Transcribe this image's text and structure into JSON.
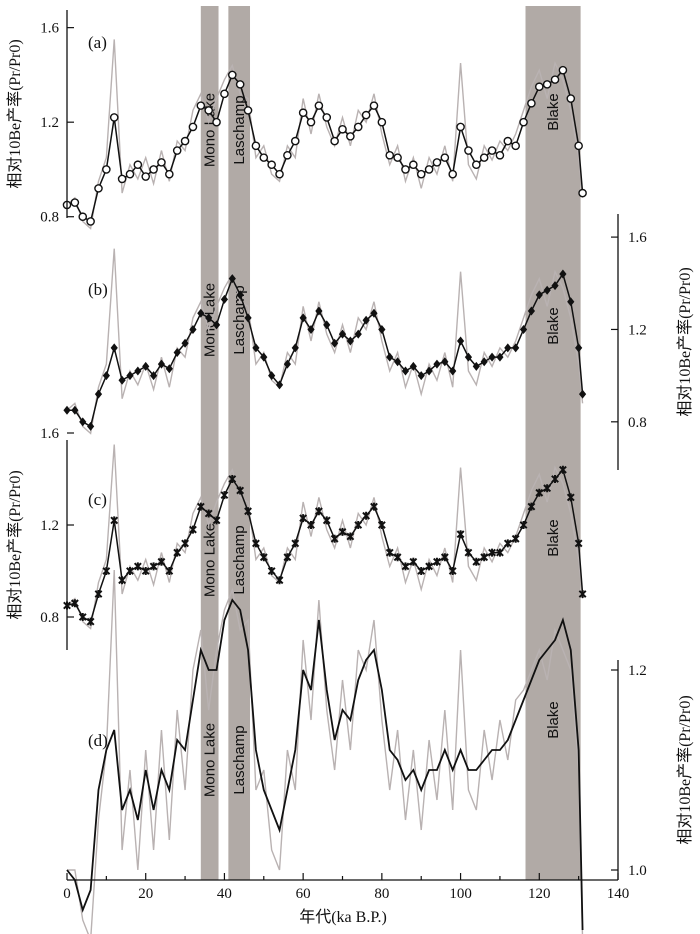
{
  "chart_data": {
    "type": "line",
    "xlabel": "年代(ka B.P.)",
    "xlim": [
      0,
      140
    ],
    "x_ticks": [
      "0",
      "20",
      "40",
      "60",
      "80",
      "100",
      "120",
      "140"
    ],
    "events": [
      {
        "label": "Mono Lake",
        "x_start": 34,
        "x_end": 38.5,
        "color": "#b1aaa6"
      },
      {
        "label": "Laschamp",
        "x_start": 41,
        "x_end": 46.5,
        "color": "#b1aaa6"
      },
      {
        "label": "Blake",
        "x_start": 116.5,
        "x_end": 130.5,
        "color": "#b1aaa6"
      }
    ],
    "colors": {
      "raw": "#b9b2b2",
      "smoothed": "#111111"
    },
    "panels": [
      {
        "label": "(a)",
        "marker": "circle",
        "ylabel": "相对10Be产率(Pr/Pr0)",
        "yaxis_side": "left",
        "ylim": [
          0.6,
          1.7
        ],
        "y_ticks": [
          "0.8",
          "1.2",
          "1.6"
        ],
        "x": [
          0,
          2,
          4,
          6,
          8,
          10,
          12,
          14,
          16,
          18,
          20,
          22,
          24,
          26,
          28,
          30,
          32,
          34,
          36,
          38,
          40,
          42,
          44,
          46,
          48,
          50,
          52,
          54,
          56,
          58,
          60,
          62,
          64,
          66,
          68,
          70,
          72,
          74,
          76,
          78,
          80,
          82,
          84,
          86,
          88,
          90,
          92,
          94,
          96,
          98,
          100,
          102,
          104,
          106,
          108,
          110,
          112,
          114,
          116,
          118,
          120,
          122,
          124,
          126,
          128,
          130,
          131
        ],
        "y": [
          0.85,
          0.86,
          0.8,
          0.78,
          0.92,
          1.0,
          1.22,
          0.96,
          0.98,
          1.02,
          0.97,
          1.0,
          1.03,
          0.98,
          1.08,
          1.12,
          1.18,
          1.27,
          1.25,
          1.2,
          1.32,
          1.4,
          1.36,
          1.25,
          1.1,
          1.05,
          1.02,
          0.98,
          1.06,
          1.12,
          1.24,
          1.2,
          1.27,
          1.22,
          1.12,
          1.17,
          1.14,
          1.18,
          1.23,
          1.27,
          1.2,
          1.06,
          1.05,
          1.0,
          1.02,
          0.98,
          1.0,
          1.03,
          1.05,
          0.98,
          1.18,
          1.08,
          1.02,
          1.05,
          1.08,
          1.06,
          1.12,
          1.1,
          1.2,
          1.28,
          1.35,
          1.36,
          1.38,
          1.42,
          1.3,
          1.1,
          0.9
        ],
        "y_raw": [
          0.85,
          0.88,
          0.78,
          0.75,
          0.95,
          1.05,
          1.55,
          0.9,
          1.02,
          0.96,
          1.05,
          0.94,
          1.08,
          0.95,
          1.12,
          1.08,
          1.25,
          1.32,
          1.2,
          1.3,
          1.38,
          1.44,
          1.32,
          1.3,
          1.05,
          1.1,
          0.98,
          0.95,
          1.1,
          1.05,
          1.3,
          1.15,
          1.32,
          1.18,
          1.1,
          1.22,
          1.1,
          1.25,
          1.2,
          1.32,
          1.15,
          1.02,
          1.1,
          0.95,
          1.05,
          0.92,
          1.05,
          0.98,
          1.1,
          0.95,
          1.45,
          1.02,
          0.96,
          1.1,
          1.04,
          1.12,
          1.08,
          1.15,
          1.25,
          1.35,
          1.42,
          1.3,
          1.45,
          1.38,
          1.25,
          1.05,
          0.88
        ]
      },
      {
        "label": "(b)",
        "marker": "diamond",
        "ylabel": "相对10Be产率(Pr/Pr0)",
        "yaxis_side": "right",
        "ylim": [
          0.6,
          1.7
        ],
        "y_ticks": [
          "0.8",
          "1.2",
          "1.6"
        ],
        "x": [
          0,
          2,
          4,
          6,
          8,
          10,
          12,
          14,
          16,
          18,
          20,
          22,
          24,
          26,
          28,
          30,
          32,
          34,
          36,
          38,
          40,
          42,
          44,
          46,
          48,
          50,
          52,
          54,
          56,
          58,
          60,
          62,
          64,
          66,
          68,
          70,
          72,
          74,
          76,
          78,
          80,
          82,
          84,
          86,
          88,
          90,
          92,
          94,
          96,
          98,
          100,
          102,
          104,
          106,
          108,
          110,
          112,
          114,
          116,
          118,
          120,
          122,
          124,
          126,
          128,
          130,
          131
        ],
        "y": [
          0.85,
          0.85,
          0.8,
          0.78,
          0.92,
          1.0,
          1.12,
          0.98,
          1.0,
          1.02,
          1.04,
          1.0,
          1.05,
          1.03,
          1.1,
          1.14,
          1.2,
          1.27,
          1.25,
          1.22,
          1.33,
          1.42,
          1.35,
          1.25,
          1.12,
          1.08,
          1.0,
          0.96,
          1.05,
          1.12,
          1.25,
          1.2,
          1.28,
          1.22,
          1.14,
          1.18,
          1.15,
          1.18,
          1.24,
          1.27,
          1.2,
          1.08,
          1.06,
          1.02,
          1.04,
          1.0,
          1.02,
          1.05,
          1.06,
          1.02,
          1.15,
          1.08,
          1.04,
          1.06,
          1.08,
          1.08,
          1.12,
          1.12,
          1.2,
          1.28,
          1.35,
          1.37,
          1.39,
          1.44,
          1.32,
          1.12,
          0.92
        ],
        "y_raw": [
          0.85,
          0.88,
          0.78,
          0.75,
          0.95,
          1.05,
          1.55,
          0.9,
          1.02,
          0.96,
          1.05,
          0.94,
          1.08,
          0.95,
          1.12,
          1.08,
          1.25,
          1.32,
          1.2,
          1.3,
          1.38,
          1.44,
          1.32,
          1.3,
          1.05,
          1.1,
          0.98,
          0.95,
          1.1,
          1.05,
          1.3,
          1.15,
          1.32,
          1.18,
          1.1,
          1.22,
          1.1,
          1.25,
          1.2,
          1.32,
          1.15,
          1.02,
          1.1,
          0.95,
          1.05,
          0.92,
          1.05,
          0.98,
          1.1,
          0.95,
          1.45,
          1.02,
          0.96,
          1.1,
          1.04,
          1.12,
          1.08,
          1.15,
          1.25,
          1.35,
          1.42,
          1.3,
          1.45,
          1.38,
          1.25,
          1.05,
          0.88
        ]
      },
      {
        "label": "(c)",
        "marker": "cross",
        "ylabel": "相对10Be产率(Pr/Pr0)",
        "yaxis_side": "left",
        "ylim": [
          0.6,
          1.7
        ],
        "y_ticks": [
          "0.8",
          "1.2",
          "1.6"
        ],
        "x": [
          0,
          2,
          4,
          6,
          8,
          10,
          12,
          14,
          16,
          18,
          20,
          22,
          24,
          26,
          28,
          30,
          32,
          34,
          36,
          38,
          40,
          42,
          44,
          46,
          48,
          50,
          52,
          54,
          56,
          58,
          60,
          62,
          64,
          66,
          68,
          70,
          72,
          74,
          76,
          78,
          80,
          82,
          84,
          86,
          88,
          90,
          92,
          94,
          96,
          98,
          100,
          102,
          104,
          106,
          108,
          110,
          112,
          114,
          116,
          118,
          120,
          122,
          124,
          126,
          128,
          130,
          131
        ],
        "y": [
          0.85,
          0.86,
          0.8,
          0.78,
          0.9,
          1.0,
          1.22,
          0.96,
          1.0,
          1.02,
          1.0,
          1.02,
          1.04,
          1.0,
          1.08,
          1.12,
          1.18,
          1.28,
          1.25,
          1.22,
          1.33,
          1.4,
          1.35,
          1.26,
          1.12,
          1.06,
          1.0,
          0.96,
          1.06,
          1.12,
          1.23,
          1.2,
          1.26,
          1.22,
          1.14,
          1.17,
          1.15,
          1.2,
          1.24,
          1.28,
          1.2,
          1.08,
          1.06,
          1.02,
          1.04,
          1.0,
          1.02,
          1.04,
          1.06,
          1.0,
          1.16,
          1.08,
          1.04,
          1.06,
          1.08,
          1.08,
          1.12,
          1.14,
          1.2,
          1.28,
          1.34,
          1.36,
          1.4,
          1.44,
          1.32,
          1.12,
          0.9
        ],
        "y_raw": [
          0.85,
          0.88,
          0.78,
          0.75,
          0.95,
          1.05,
          1.55,
          0.9,
          1.02,
          0.96,
          1.05,
          0.94,
          1.08,
          0.95,
          1.12,
          1.08,
          1.25,
          1.32,
          1.2,
          1.3,
          1.38,
          1.44,
          1.32,
          1.3,
          1.05,
          1.1,
          0.98,
          0.95,
          1.1,
          1.05,
          1.3,
          1.15,
          1.32,
          1.18,
          1.1,
          1.22,
          1.1,
          1.25,
          1.2,
          1.32,
          1.15,
          1.02,
          1.1,
          0.95,
          1.05,
          0.92,
          1.05,
          0.98,
          1.1,
          0.95,
          1.45,
          1.02,
          0.96,
          1.1,
          1.04,
          1.12,
          1.08,
          1.15,
          1.25,
          1.35,
          1.42,
          1.3,
          1.45,
          1.38,
          1.25,
          1.05,
          0.88
        ]
      },
      {
        "label": "(d)",
        "marker": "none",
        "ylabel": "相对10Be产率(Pr/Pr0)",
        "yaxis_side": "right",
        "ylim": [
          0.9,
          1.3
        ],
        "y_ticks": [
          "1.0",
          "1.2"
        ],
        "x": [
          0,
          2,
          4,
          6,
          8,
          10,
          12,
          14,
          16,
          18,
          20,
          22,
          24,
          26,
          28,
          30,
          32,
          34,
          36,
          38,
          40,
          42,
          44,
          46,
          48,
          50,
          52,
          54,
          56,
          58,
          60,
          62,
          64,
          66,
          68,
          70,
          72,
          74,
          76,
          78,
          80,
          82,
          84,
          86,
          88,
          90,
          92,
          94,
          96,
          98,
          100,
          102,
          104,
          106,
          108,
          110,
          112,
          114,
          116,
          118,
          120,
          122,
          124,
          126,
          128,
          130,
          131
        ],
        "y": [
          1.0,
          0.99,
          0.96,
          0.98,
          1.08,
          1.12,
          1.14,
          1.06,
          1.08,
          1.05,
          1.1,
          1.06,
          1.1,
          1.08,
          1.13,
          1.12,
          1.17,
          1.22,
          1.2,
          1.2,
          1.25,
          1.27,
          1.26,
          1.22,
          1.12,
          1.08,
          1.06,
          1.04,
          1.08,
          1.12,
          1.2,
          1.18,
          1.25,
          1.18,
          1.13,
          1.16,
          1.15,
          1.19,
          1.21,
          1.22,
          1.18,
          1.12,
          1.11,
          1.09,
          1.1,
          1.08,
          1.1,
          1.1,
          1.12,
          1.1,
          1.12,
          1.1,
          1.1,
          1.11,
          1.12,
          1.12,
          1.13,
          1.15,
          1.17,
          1.19,
          1.21,
          1.22,
          1.23,
          1.25,
          1.22,
          1.12,
          0.94
        ],
        "y_raw": [
          1.0,
          1.0,
          0.95,
          0.93,
          1.05,
          1.12,
          1.3,
          1.02,
          1.1,
          1.0,
          1.12,
          1.02,
          1.14,
          1.03,
          1.16,
          1.08,
          1.2,
          1.24,
          1.16,
          1.22,
          1.26,
          1.28,
          1.24,
          1.25,
          1.08,
          1.1,
          1.02,
          1.0,
          1.12,
          1.08,
          1.23,
          1.15,
          1.27,
          1.16,
          1.1,
          1.19,
          1.12,
          1.22,
          1.2,
          1.25,
          1.15,
          1.08,
          1.14,
          1.05,
          1.12,
          1.04,
          1.13,
          1.07,
          1.16,
          1.06,
          1.22,
          1.08,
          1.06,
          1.14,
          1.09,
          1.15,
          1.11,
          1.17,
          1.18,
          1.2,
          1.22,
          1.19,
          1.24,
          1.22,
          1.2,
          1.1,
          0.93
        ]
      }
    ]
  }
}
